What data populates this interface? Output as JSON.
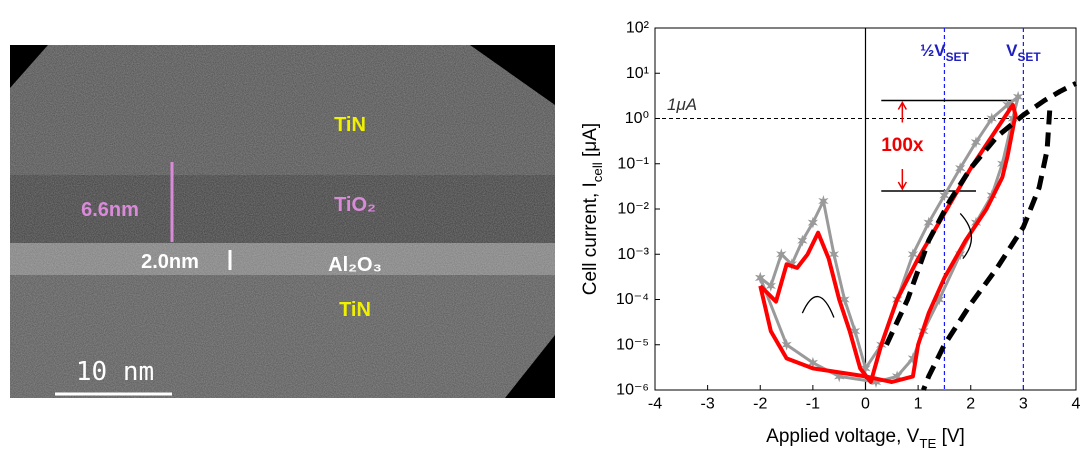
{
  "tem_image": {
    "labels": [
      {
        "text": "TiN",
        "color": "#f0f000"
      },
      {
        "text": "6.6nm",
        "color": "#d98ad9"
      },
      {
        "text": "TiO₂",
        "color": "#d98ad9"
      },
      {
        "text": "2.0nm",
        "color": "#ffffff"
      },
      {
        "text": "Al₂O₃",
        "color": "#ffffff"
      },
      {
        "text": "TiN",
        "color": "#f0f000"
      }
    ],
    "scale_bar": "10 nm"
  },
  "chart_data": {
    "type": "line",
    "log_y": true,
    "xlim": [
      -4,
      4
    ],
    "xticks": [
      -4,
      -3,
      -2,
      -1,
      0,
      1,
      2,
      3,
      4
    ],
    "ylim": [
      1e-06,
      100
    ],
    "yticks": [
      {
        "value": 1e-06,
        "label": "10⁻⁶"
      },
      {
        "value": 1e-05,
        "label": "10⁻⁵"
      },
      {
        "value": 0.0001,
        "label": "10⁻⁴"
      },
      {
        "value": 0.001,
        "label": "10⁻³"
      },
      {
        "value": 0.01,
        "label": "10⁻²"
      },
      {
        "value": 0.1,
        "label": "10⁻¹"
      },
      {
        "value": 1,
        "label": "10⁰"
      },
      {
        "value": 10,
        "label": "10¹"
      },
      {
        "value": 100,
        "label": "10²"
      }
    ],
    "xlabel": {
      "text": "Applied voltage, V",
      "sub": "TE",
      "unit": " [V]"
    },
    "ylabel": {
      "text": "Cell current, I",
      "sub": "cell",
      "unit": " [μA]"
    },
    "hline": {
      "y": 1,
      "label": "1μA"
    },
    "vlines": [
      {
        "x": 1.5,
        "label": {
          "main": "½V",
          "sub": "SET"
        }
      },
      {
        "x": 3,
        "label": {
          "main": "V",
          "sub": "SET"
        }
      }
    ],
    "levels": [
      {
        "y": 2.5,
        "x": [
          0.3,
          2.9
        ]
      },
      {
        "y": 0.025,
        "x": [
          0.3,
          2.1
        ]
      }
    ],
    "ratio_label": "100x",
    "series": [
      {
        "color": "#9a9a9a",
        "style": "stars",
        "x": [
          -2,
          -1.8,
          -1.6,
          -1.4,
          -1.2,
          -1,
          -0.8,
          -0.6,
          -0.4,
          -0.2,
          0,
          0.3,
          0.6,
          0.9,
          1.2,
          1.5,
          1.8,
          2.1,
          2.4,
          2.7,
          2.9,
          2.8,
          2.6,
          2.4,
          2.1,
          1.8,
          1.4,
          1.1,
          0.9,
          0.6,
          0.2,
          -0.5,
          -1,
          -1.5,
          -2
        ],
        "values": [
          0.0003,
          0.0002,
          0.001,
          0.0006,
          0.002,
          0.005,
          0.015,
          0.001,
          0.0001,
          2e-05,
          3e-06,
          1e-05,
          0.0001,
          0.001,
          0.005,
          0.02,
          0.08,
          0.3,
          1,
          2,
          3,
          1,
          0.1,
          0.02,
          0.005,
          0.001,
          0.0001,
          2e-05,
          5e-06,
          2e-06,
          1.5e-06,
          2e-06,
          4e-06,
          1e-05,
          0.0003
        ]
      },
      {
        "color": "#ff0000",
        "style": "solid",
        "x": [
          -2,
          -1.7,
          -1.5,
          -1.3,
          -1.1,
          -0.9,
          -0.7,
          -0.5,
          -0.3,
          -0.1,
          0.1,
          0.3,
          0.6,
          1,
          1.5,
          2,
          2.5,
          2.8,
          2.85,
          2.7,
          2.6,
          2.3,
          1.9,
          1.5,
          1.2,
          1,
          0.9,
          0.5,
          0,
          -1,
          -1.5,
          -1.8,
          -2
        ],
        "values": [
          0.0002,
          9e-05,
          0.0006,
          0.0005,
          0.001,
          0.003,
          0.0008,
          0.0001,
          2e-05,
          3e-06,
          1.5e-06,
          1e-05,
          0.0001,
          0.0008,
          0.008,
          0.08,
          0.6,
          2,
          1.2,
          0.15,
          0.05,
          0.01,
          0.002,
          0.0003,
          5e-05,
          1e-05,
          2e-06,
          1.5e-06,
          2e-06,
          3e-06,
          5e-06,
          2e-05,
          0.0002
        ]
      },
      {
        "color": "#000000",
        "style": "dashed",
        "x": [
          0.4,
          0.8,
          1.2,
          1.6,
          2,
          2.5,
          3,
          3.4,
          3.7,
          4,
          null,
          3.5,
          3.45,
          3.3,
          3,
          2.5,
          2,
          1.5,
          1.2,
          1.1
        ],
        "values": [
          1e-05,
          0.0001,
          0.002,
          0.015,
          0.08,
          0.4,
          1.2,
          2.5,
          4,
          6,
          null,
          1.5,
          0.2,
          0.03,
          0.004,
          0.0005,
          8e-05,
          1e-05,
          2e-06,
          1e-06
        ]
      }
    ]
  }
}
